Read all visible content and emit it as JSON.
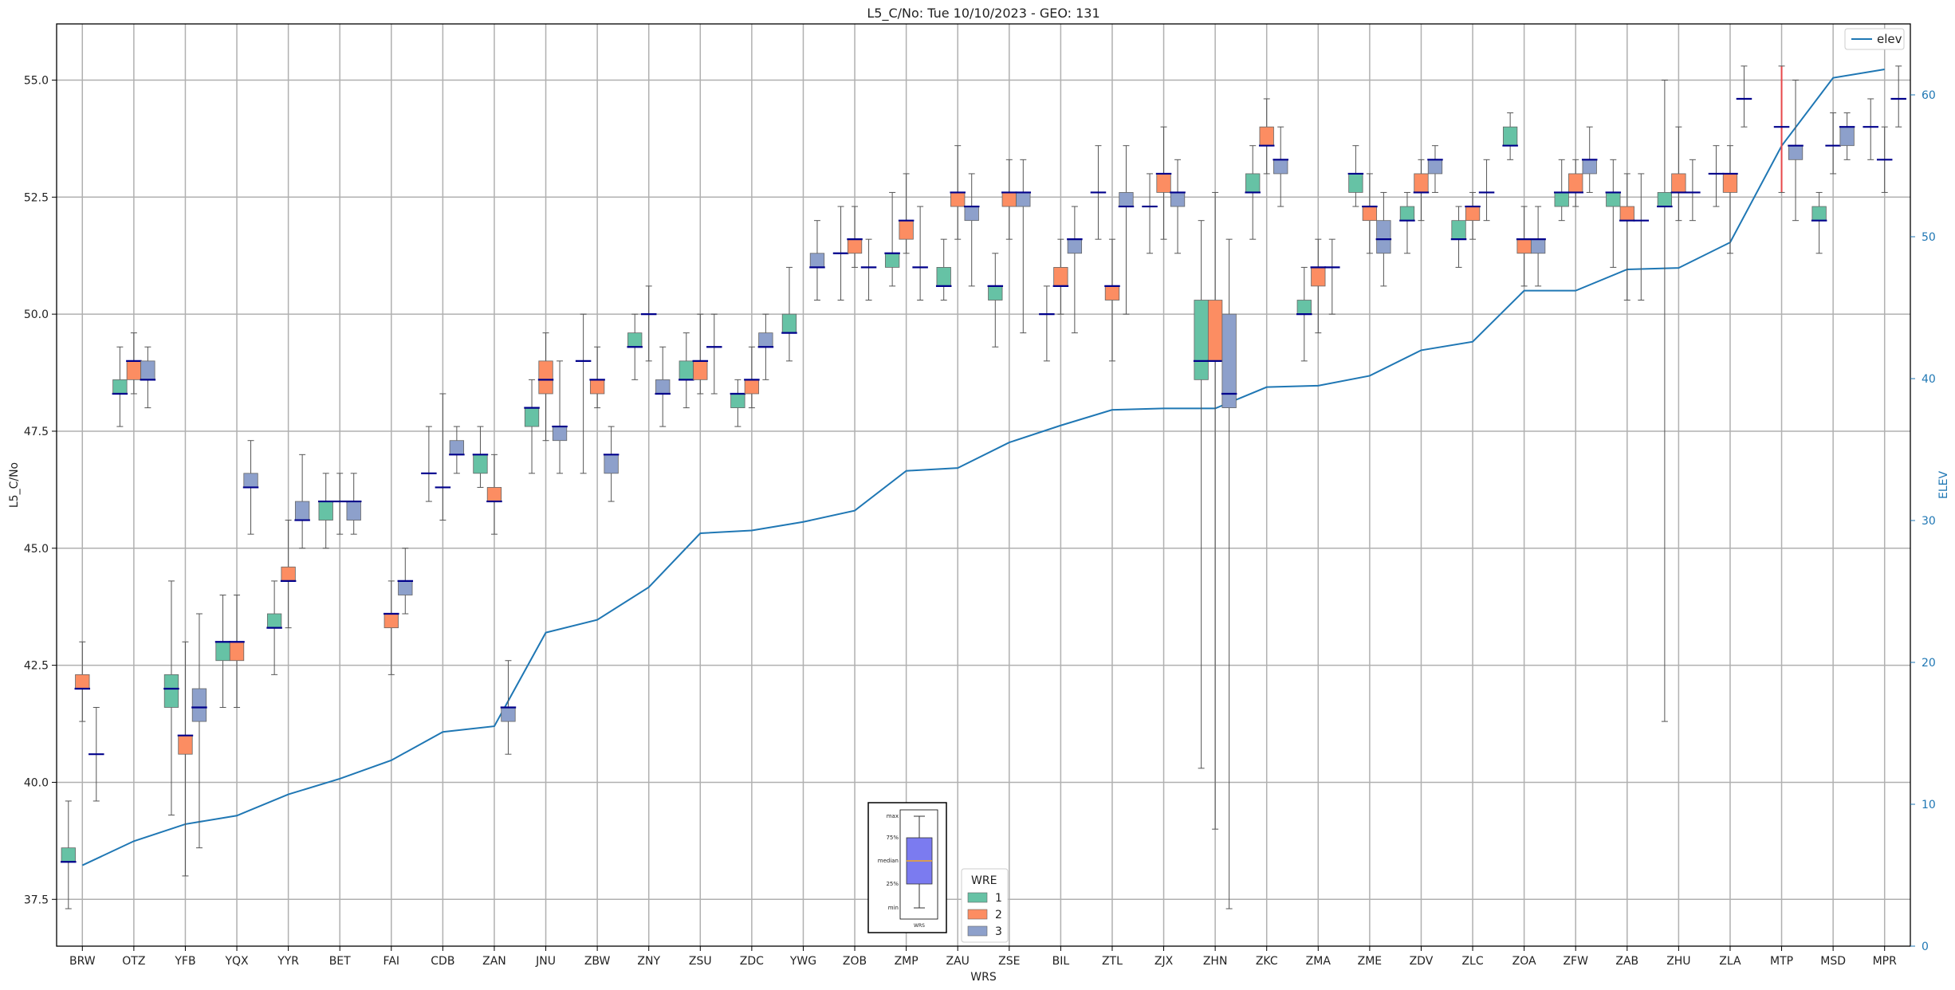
{
  "chart_data": {
    "type": "box",
    "title": "L5_C/No: Tue 10/10/2023 - GEO: 131",
    "xlabel": "WRS",
    "ylabel": "L5_C/No",
    "y2label": "ELEV",
    "ylim": [
      36.5,
      56.2
    ],
    "y2lim": [
      0,
      65
    ],
    "yticks": [
      "37.5",
      "40.0",
      "42.5",
      "45.0",
      "47.5",
      "50.0",
      "52.5",
      "55.0"
    ],
    "y2ticks": [
      "0",
      "10",
      "20",
      "30",
      "40",
      "50",
      "60"
    ],
    "grid": true,
    "colors": {
      "1": "#66c2a5",
      "2": "#fc8d62",
      "3": "#8da0cb",
      "elev": "#1f77b4",
      "median": "#00008b",
      "whisker": "#555555",
      "single_whisker": "#e8474a"
    },
    "categories": [
      "BRW",
      "OTZ",
      "YFB",
      "YQX",
      "YYR",
      "BET",
      "FAI",
      "CDB",
      "ZAN",
      "JNU",
      "ZBW",
      "ZNY",
      "ZSU",
      "ZDC",
      "YWG",
      "ZOB",
      "ZMP",
      "ZAU",
      "ZSE",
      "BIL",
      "ZTL",
      "ZJX",
      "ZHN",
      "ZKC",
      "ZMA",
      "ZME",
      "ZDV",
      "ZLC",
      "ZOA",
      "ZFW",
      "ZAB",
      "ZHU",
      "ZLA",
      "MTP",
      "MSD",
      "MPR"
    ],
    "boxes": [
      {
        "wrs": "BRW",
        "wre": 1,
        "min": 37.3,
        "q1": 38.3,
        "median": 38.3,
        "q3": 38.6,
        "max": 39.6
      },
      {
        "wrs": "BRW",
        "wre": 2,
        "min": 41.3,
        "q1": 42.0,
        "median": 42.0,
        "q3": 42.3,
        "max": 43.0
      },
      {
        "wrs": "BRW",
        "wre": 3,
        "min": 39.6,
        "q1": 40.6,
        "median": 40.6,
        "q3": 40.6,
        "max": 41.6
      },
      {
        "wrs": "OTZ",
        "wre": 1,
        "min": 47.6,
        "q1": 48.3,
        "median": 48.3,
        "q3": 48.6,
        "max": 49.3
      },
      {
        "wrs": "OTZ",
        "wre": 2,
        "min": 48.3,
        "q1": 48.6,
        "median": 49.0,
        "q3": 49.0,
        "max": 49.6
      },
      {
        "wrs": "OTZ",
        "wre": 3,
        "min": 48.0,
        "q1": 48.6,
        "median": 48.6,
        "q3": 49.0,
        "max": 49.3
      },
      {
        "wrs": "YFB",
        "wre": 1,
        "min": 39.3,
        "q1": 41.6,
        "median": 42.0,
        "q3": 42.3,
        "max": 44.3
      },
      {
        "wrs": "YFB",
        "wre": 2,
        "min": 38.0,
        "q1": 40.6,
        "median": 41.0,
        "q3": 41.0,
        "max": 43.0
      },
      {
        "wrs": "YFB",
        "wre": 3,
        "min": 38.6,
        "q1": 41.3,
        "median": 41.6,
        "q3": 42.0,
        "max": 43.6
      },
      {
        "wrs": "YQX",
        "wre": 1,
        "min": 41.6,
        "q1": 42.6,
        "median": 43.0,
        "q3": 43.0,
        "max": 44.0
      },
      {
        "wrs": "YQX",
        "wre": 2,
        "min": 41.6,
        "q1": 42.6,
        "median": 43.0,
        "q3": 43.0,
        "max": 44.0
      },
      {
        "wrs": "YQX",
        "wre": 3,
        "min": 45.3,
        "q1": 46.3,
        "median": 46.3,
        "q3": 46.6,
        "max": 47.3
      },
      {
        "wrs": "YYR",
        "wre": 1,
        "min": 42.3,
        "q1": 43.3,
        "median": 43.3,
        "q3": 43.6,
        "max": 44.3
      },
      {
        "wrs": "YYR",
        "wre": 2,
        "min": 43.3,
        "q1": 44.3,
        "median": 44.3,
        "q3": 44.6,
        "max": 45.6
      },
      {
        "wrs": "YYR",
        "wre": 3,
        "min": 45.0,
        "q1": 45.6,
        "median": 45.6,
        "q3": 46.0,
        "max": 47.0
      },
      {
        "wrs": "BET",
        "wre": 1,
        "min": 45.0,
        "q1": 45.6,
        "median": 46.0,
        "q3": 46.0,
        "max": 46.6
      },
      {
        "wrs": "BET",
        "wre": 3,
        "min": 45.3,
        "q1": 45.6,
        "median": 46.0,
        "q3": 46.0,
        "max": 46.6
      },
      {
        "wrs": "BET",
        "wre": 2,
        "min": 45.3,
        "q1": 46.0,
        "median": 46.0,
        "q3": 46.0,
        "max": 46.6
      },
      {
        "wrs": "FAI",
        "wre": 2,
        "min": 42.3,
        "q1": 43.3,
        "median": 43.6,
        "q3": 43.6,
        "max": 44.3
      },
      {
        "wrs": "FAI",
        "wre": 3,
        "min": 43.6,
        "q1": 44.0,
        "median": 44.3,
        "q3": 44.3,
        "max": 45.0
      },
      {
        "wrs": "CDB",
        "wre": 1,
        "min": 46.0,
        "q1": 46.6,
        "median": 46.6,
        "q3": 46.6,
        "max": 47.6
      },
      {
        "wrs": "CDB",
        "wre": 2,
        "min": 45.6,
        "q1": 46.3,
        "median": 46.3,
        "q3": 46.3,
        "max": 48.3
      },
      {
        "wrs": "CDB",
        "wre": 3,
        "min": 46.6,
        "q1": 47.0,
        "median": 47.0,
        "q3": 47.3,
        "max": 47.6
      },
      {
        "wrs": "ZAN",
        "wre": 1,
        "min": 46.3,
        "q1": 46.6,
        "median": 47.0,
        "q3": 47.0,
        "max": 47.6
      },
      {
        "wrs": "ZAN",
        "wre": 2,
        "min": 45.3,
        "q1": 46.0,
        "median": 46.0,
        "q3": 46.3,
        "max": 47.0
      },
      {
        "wrs": "ZAN",
        "wre": 3,
        "min": 40.6,
        "q1": 41.3,
        "median": 41.6,
        "q3": 41.6,
        "max": 42.6
      },
      {
        "wrs": "JNU",
        "wre": 1,
        "min": 46.6,
        "q1": 47.6,
        "median": 48.0,
        "q3": 48.0,
        "max": 48.6
      },
      {
        "wrs": "JNU",
        "wre": 2,
        "min": 47.3,
        "q1": 48.3,
        "median": 48.6,
        "q3": 49.0,
        "max": 49.6
      },
      {
        "wrs": "JNU",
        "wre": 3,
        "min": 46.6,
        "q1": 47.3,
        "median": 47.6,
        "q3": 47.6,
        "max": 49.0
      },
      {
        "wrs": "ZBW",
        "wre": 1,
        "min": 46.6,
        "q1": 49.0,
        "median": 49.0,
        "q3": 49.0,
        "max": 50.0
      },
      {
        "wrs": "ZBW",
        "wre": 2,
        "min": 48.0,
        "q1": 48.3,
        "median": 48.6,
        "q3": 48.6,
        "max": 49.3
      },
      {
        "wrs": "ZBW",
        "wre": 3,
        "min": 46.0,
        "q1": 46.6,
        "median": 47.0,
        "q3": 47.0,
        "max": 47.6
      },
      {
        "wrs": "ZNY",
        "wre": 1,
        "min": 48.6,
        "q1": 49.3,
        "median": 49.3,
        "q3": 49.6,
        "max": 50.0
      },
      {
        "wrs": "ZNY",
        "wre": 2,
        "min": 49.0,
        "q1": 50.0,
        "median": 50.0,
        "q3": 50.0,
        "max": 50.6
      },
      {
        "wrs": "ZNY",
        "wre": 3,
        "min": 47.6,
        "q1": 48.3,
        "median": 48.3,
        "q3": 48.6,
        "max": 49.3
      },
      {
        "wrs": "ZSU",
        "wre": 1,
        "min": 48.0,
        "q1": 48.6,
        "median": 48.6,
        "q3": 49.0,
        "max": 49.6
      },
      {
        "wrs": "ZSU",
        "wre": 2,
        "min": 48.3,
        "q1": 48.6,
        "median": 49.0,
        "q3": 49.0,
        "max": 50.0
      },
      {
        "wrs": "ZSU",
        "wre": 3,
        "min": 48.3,
        "q1": 49.3,
        "median": 49.3,
        "q3": 49.3,
        "max": 50.0
      },
      {
        "wrs": "ZDC",
        "wre": 1,
        "min": 47.6,
        "q1": 48.0,
        "median": 48.3,
        "q3": 48.3,
        "max": 48.6
      },
      {
        "wrs": "ZDC",
        "wre": 2,
        "min": 48.0,
        "q1": 48.3,
        "median": 48.6,
        "q3": 48.6,
        "max": 49.3
      },
      {
        "wrs": "ZDC",
        "wre": 3,
        "min": 48.6,
        "q1": 49.3,
        "median": 49.3,
        "q3": 49.6,
        "max": 50.0
      },
      {
        "wrs": "YWG",
        "wre": 1,
        "min": 49.0,
        "q1": 49.6,
        "median": 49.6,
        "q3": 50.0,
        "max": 51.0
      },
      {
        "wrs": "YWG",
        "wre": 3,
        "min": 50.3,
        "q1": 51.0,
        "median": 51.0,
        "q3": 51.3,
        "max": 52.0
      },
      {
        "wrs": "ZOB",
        "wre": 1,
        "min": 50.3,
        "q1": 51.3,
        "median": 51.3,
        "q3": 51.3,
        "max": 52.3
      },
      {
        "wrs": "ZOB",
        "wre": 2,
        "min": 51.0,
        "q1": 51.3,
        "median": 51.6,
        "q3": 51.6,
        "max": 52.3
      },
      {
        "wrs": "ZOB",
        "wre": 3,
        "min": 50.3,
        "q1": 51.0,
        "median": 51.0,
        "q3": 51.0,
        "max": 51.6
      },
      {
        "wrs": "ZMP",
        "wre": 1,
        "min": 50.6,
        "q1": 51.0,
        "median": 51.3,
        "q3": 51.3,
        "max": 52.6
      },
      {
        "wrs": "ZMP",
        "wre": 2,
        "min": 51.3,
        "q1": 51.6,
        "median": 52.0,
        "q3": 52.0,
        "max": 53.0
      },
      {
        "wrs": "ZMP",
        "wre": 3,
        "min": 50.3,
        "q1": 51.0,
        "median": 51.0,
        "q3": 51.0,
        "max": 52.3
      },
      {
        "wrs": "ZAU",
        "wre": 1,
        "min": 50.3,
        "q1": 50.6,
        "median": 50.6,
        "q3": 51.0,
        "max": 51.6
      },
      {
        "wrs": "ZAU",
        "wre": 2,
        "min": 51.6,
        "q1": 52.3,
        "median": 52.6,
        "q3": 52.6,
        "max": 53.6
      },
      {
        "wrs": "ZAU",
        "wre": 3,
        "min": 50.6,
        "q1": 52.0,
        "median": 52.3,
        "q3": 52.3,
        "max": 53.0
      },
      {
        "wrs": "ZSE",
        "wre": 1,
        "min": 49.3,
        "q1": 50.3,
        "median": 50.6,
        "q3": 50.6,
        "max": 51.3
      },
      {
        "wrs": "ZSE",
        "wre": 2,
        "min": 51.6,
        "q1": 52.3,
        "median": 52.6,
        "q3": 52.6,
        "max": 53.3
      },
      {
        "wrs": "ZSE",
        "wre": 3,
        "min": 49.6,
        "q1": 52.3,
        "median": 52.6,
        "q3": 52.6,
        "max": 53.3
      },
      {
        "wrs": "BIL",
        "wre": 1,
        "min": 49.0,
        "q1": 50.0,
        "median": 50.0,
        "q3": 50.0,
        "max": 50.6
      },
      {
        "wrs": "BIL",
        "wre": 2,
        "min": 50.0,
        "q1": 50.6,
        "median": 50.6,
        "q3": 51.0,
        "max": 51.6
      },
      {
        "wrs": "BIL",
        "wre": 3,
        "min": 49.6,
        "q1": 51.3,
        "median": 51.6,
        "q3": 51.6,
        "max": 52.3
      },
      {
        "wrs": "ZTL",
        "wre": 1,
        "min": 51.6,
        "q1": 52.6,
        "median": 52.6,
        "q3": 52.6,
        "max": 53.6
      },
      {
        "wrs": "ZTL",
        "wre": 2,
        "min": 49.0,
        "q1": 50.3,
        "median": 50.6,
        "q3": 50.6,
        "max": 51.6
      },
      {
        "wrs": "ZTL",
        "wre": 3,
        "min": 50.0,
        "q1": 52.3,
        "median": 52.3,
        "q3": 52.6,
        "max": 53.6
      },
      {
        "wrs": "ZJX",
        "wre": 1,
        "min": 51.3,
        "q1": 52.3,
        "median": 52.3,
        "q3": 52.3,
        "max": 53.0
      },
      {
        "wrs": "ZJX",
        "wre": 2,
        "min": 51.6,
        "q1": 52.6,
        "median": 53.0,
        "q3": 53.0,
        "max": 54.0
      },
      {
        "wrs": "ZJX",
        "wre": 3,
        "min": 51.3,
        "q1": 52.3,
        "median": 52.6,
        "q3": 52.6,
        "max": 53.3
      },
      {
        "wrs": "ZHN",
        "wre": 1,
        "min": 40.3,
        "q1": 48.6,
        "median": 49.0,
        "q3": 50.3,
        "max": 52.0
      },
      {
        "wrs": "ZHN",
        "wre": 2,
        "min": 39.0,
        "q1": 49.0,
        "median": 49.0,
        "q3": 50.3,
        "max": 52.6
      },
      {
        "wrs": "ZHN",
        "wre": 3,
        "min": 37.3,
        "q1": 48.0,
        "median": 48.3,
        "q3": 50.0,
        "max": 51.6
      },
      {
        "wrs": "ZKC",
        "wre": 1,
        "min": 51.6,
        "q1": 52.6,
        "median": 52.6,
        "q3": 53.0,
        "max": 53.6
      },
      {
        "wrs": "ZKC",
        "wre": 2,
        "min": 53.0,
        "q1": 53.6,
        "median": 53.6,
        "q3": 54.0,
        "max": 54.6
      },
      {
        "wrs": "ZKC",
        "wre": 3,
        "min": 52.3,
        "q1": 53.0,
        "median": 53.3,
        "q3": 53.3,
        "max": 54.0
      },
      {
        "wrs": "ZMA",
        "wre": 1,
        "min": 49.0,
        "q1": 50.0,
        "median": 50.0,
        "q3": 50.3,
        "max": 51.0
      },
      {
        "wrs": "ZMA",
        "wre": 2,
        "min": 49.6,
        "q1": 50.6,
        "median": 51.0,
        "q3": 51.0,
        "max": 51.6
      },
      {
        "wrs": "ZMA",
        "wre": 3,
        "min": 50.0,
        "q1": 51.0,
        "median": 51.0,
        "q3": 51.0,
        "max": 51.6
      },
      {
        "wrs": "ZME",
        "wre": 1,
        "min": 52.3,
        "q1": 52.6,
        "median": 53.0,
        "q3": 53.0,
        "max": 53.6
      },
      {
        "wrs": "ZME",
        "wre": 2,
        "min": 51.3,
        "q1": 52.0,
        "median": 52.3,
        "q3": 52.3,
        "max": 53.0
      },
      {
        "wrs": "ZME",
        "wre": 3,
        "min": 50.6,
        "q1": 51.3,
        "median": 51.6,
        "q3": 52.0,
        "max": 52.6
      },
      {
        "wrs": "ZDV",
        "wre": 1,
        "min": 51.3,
        "q1": 52.0,
        "median": 52.0,
        "q3": 52.3,
        "max": 52.6
      },
      {
        "wrs": "ZDV",
        "wre": 2,
        "min": 52.0,
        "q1": 52.6,
        "median": 52.6,
        "q3": 53.0,
        "max": 53.3
      },
      {
        "wrs": "ZDV",
        "wre": 3,
        "min": 52.6,
        "q1": 53.0,
        "median": 53.3,
        "q3": 53.3,
        "max": 53.6
      },
      {
        "wrs": "ZLC",
        "wre": 1,
        "min": 51.0,
        "q1": 51.6,
        "median": 51.6,
        "q3": 52.0,
        "max": 52.3
      },
      {
        "wrs": "ZLC",
        "wre": 2,
        "min": 51.6,
        "q1": 52.0,
        "median": 52.3,
        "q3": 52.3,
        "max": 52.6
      },
      {
        "wrs": "ZLC",
        "wre": 3,
        "min": 52.0,
        "q1": 52.6,
        "median": 52.6,
        "q3": 52.6,
        "max": 53.3
      },
      {
        "wrs": "ZOA",
        "wre": 1,
        "min": 53.3,
        "q1": 53.6,
        "median": 53.6,
        "q3": 54.0,
        "max": 54.3
      },
      {
        "wrs": "ZOA",
        "wre": 2,
        "min": 50.6,
        "q1": 51.3,
        "median": 51.6,
        "q3": 51.6,
        "max": 52.3
      },
      {
        "wrs": "ZOA",
        "wre": 3,
        "min": 50.6,
        "q1": 51.3,
        "median": 51.6,
        "q3": 51.6,
        "max": 52.3
      },
      {
        "wrs": "ZFW",
        "wre": 1,
        "min": 52.0,
        "q1": 52.3,
        "median": 52.6,
        "q3": 52.6,
        "max": 53.3
      },
      {
        "wrs": "ZFW",
        "wre": 2,
        "min": 52.3,
        "q1": 52.6,
        "median": 52.6,
        "q3": 53.0,
        "max": 53.3
      },
      {
        "wrs": "ZFW",
        "wre": 3,
        "min": 52.6,
        "q1": 53.0,
        "median": 53.3,
        "q3": 53.3,
        "max": 54.0
      },
      {
        "wrs": "ZAB",
        "wre": 1,
        "min": 51.0,
        "q1": 52.3,
        "median": 52.6,
        "q3": 52.6,
        "max": 53.3
      },
      {
        "wrs": "ZAB",
        "wre": 2,
        "min": 50.3,
        "q1": 52.0,
        "median": 52.0,
        "q3": 52.3,
        "max": 53.0
      },
      {
        "wrs": "ZAB",
        "wre": 3,
        "min": 50.3,
        "q1": 52.0,
        "median": 52.0,
        "q3": 52.0,
        "max": 53.0
      },
      {
        "wrs": "ZHU",
        "wre": 1,
        "min": 41.3,
        "q1": 52.3,
        "median": 52.3,
        "q3": 52.6,
        "max": 55.0
      },
      {
        "wrs": "ZHU",
        "wre": 2,
        "min": 52.0,
        "q1": 52.6,
        "median": 52.6,
        "q3": 53.0,
        "max": 54.0
      },
      {
        "wrs": "ZHU",
        "wre": 3,
        "min": 52.0,
        "q1": 52.6,
        "median": 52.6,
        "q3": 52.6,
        "max": 53.3
      },
      {
        "wrs": "ZLA",
        "wre": 1,
        "min": 52.3,
        "q1": 53.0,
        "median": 53.0,
        "q3": 53.0,
        "max": 53.6
      },
      {
        "wrs": "ZLA",
        "wre": 2,
        "min": 51.3,
        "q1": 52.6,
        "median": 53.0,
        "q3": 53.0,
        "max": 53.6
      },
      {
        "wrs": "ZLA",
        "wre": 3,
        "min": 54.0,
        "q1": 54.6,
        "median": 54.6,
        "q3": 54.6,
        "max": 55.3
      },
      {
        "wrs": "MTP",
        "wre": 2,
        "min": 52.6,
        "q1": 54.0,
        "median": 54.0,
        "q3": 54.0,
        "max": 55.3
      },
      {
        "wrs": "MTP",
        "wre": 3,
        "min": 52.0,
        "q1": 53.3,
        "median": 53.6,
        "q3": 53.6,
        "max": 55.0
      },
      {
        "wrs": "MSD",
        "wre": 1,
        "min": 51.3,
        "q1": 52.0,
        "median": 52.0,
        "q3": 52.3,
        "max": 52.6
      },
      {
        "wrs": "MSD",
        "wre": 2,
        "min": 53.0,
        "q1": 53.6,
        "median": 53.6,
        "q3": 53.6,
        "max": 54.3
      },
      {
        "wrs": "MSD",
        "wre": 3,
        "min": 53.3,
        "q1": 53.6,
        "median": 54.0,
        "q3": 54.0,
        "max": 54.3
      },
      {
        "wrs": "MPR",
        "wre": 1,
        "min": 53.3,
        "q1": 54.0,
        "median": 54.0,
        "q3": 54.0,
        "max": 54.6
      },
      {
        "wrs": "MPR",
        "wre": 2,
        "min": 52.6,
        "q1": 53.3,
        "median": 53.3,
        "q3": 53.3,
        "max": 54.0
      },
      {
        "wrs": "MPR",
        "wre": 3,
        "min": 54.0,
        "q1": 54.6,
        "median": 54.6,
        "q3": 54.6,
        "max": 55.3
      }
    ],
    "series": [
      {
        "name": "elev",
        "axis": "right",
        "values": [
          5.7,
          7.4,
          8.6,
          9.2,
          10.7,
          11.8,
          13.1,
          15.1,
          15.5,
          22.1,
          23.0,
          25.3,
          29.1,
          29.3,
          29.9,
          30.7,
          33.5,
          33.7,
          35.5,
          36.7,
          37.8,
          37.9,
          37.9,
          39.4,
          39.5,
          40.2,
          42.0,
          42.6,
          46.2,
          46.2,
          47.7,
          47.8,
          49.6,
          56.4,
          61.2,
          61.8
        ]
      }
    ],
    "legend_elev": {
      "position": "top-right",
      "label": "elev"
    },
    "legend_wre": {
      "position": "bottom-center",
      "title": "WRE",
      "labels": [
        "1",
        "2",
        "3"
      ]
    },
    "inset_key": {
      "labels": [
        "max",
        "75%",
        "median",
        "25%",
        "min"
      ],
      "xlabel": "WRS",
      "box_color": "#7b7bf0",
      "median_color": "#f5a623"
    }
  }
}
